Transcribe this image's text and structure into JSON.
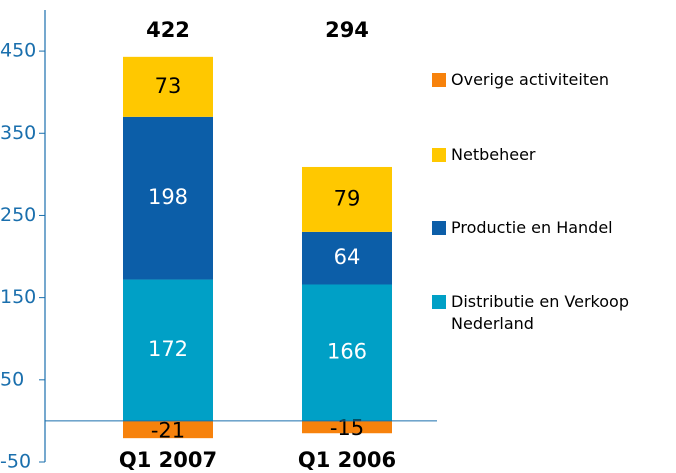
{
  "chart_data": {
    "type": "stacked_bar",
    "categories": [
      "Q1 2007",
      "Q1 2006"
    ],
    "totals": [
      422,
      294
    ],
    "series": [
      {
        "name": "Distributie en Verkoop Nederland",
        "color": "#00a0c6",
        "label_color": "#ffffff",
        "values": [
          172,
          166
        ]
      },
      {
        "name": "Productie en Handel",
        "color": "#0c5ea8",
        "label_color": "#ffffff",
        "values": [
          198,
          64
        ]
      },
      {
        "name": "Netbeheer",
        "color": "#ffc800",
        "label_color": "#000000",
        "values": [
          73,
          79
        ]
      },
      {
        "name": "Overige activiteiten",
        "color": "#f7820c",
        "label_color": "#000000",
        "values": [
          -21,
          -15
        ]
      }
    ],
    "ylim": [
      -50,
      500
    ],
    "yticks": [
      -50,
      50,
      150,
      250,
      350,
      450
    ]
  }
}
